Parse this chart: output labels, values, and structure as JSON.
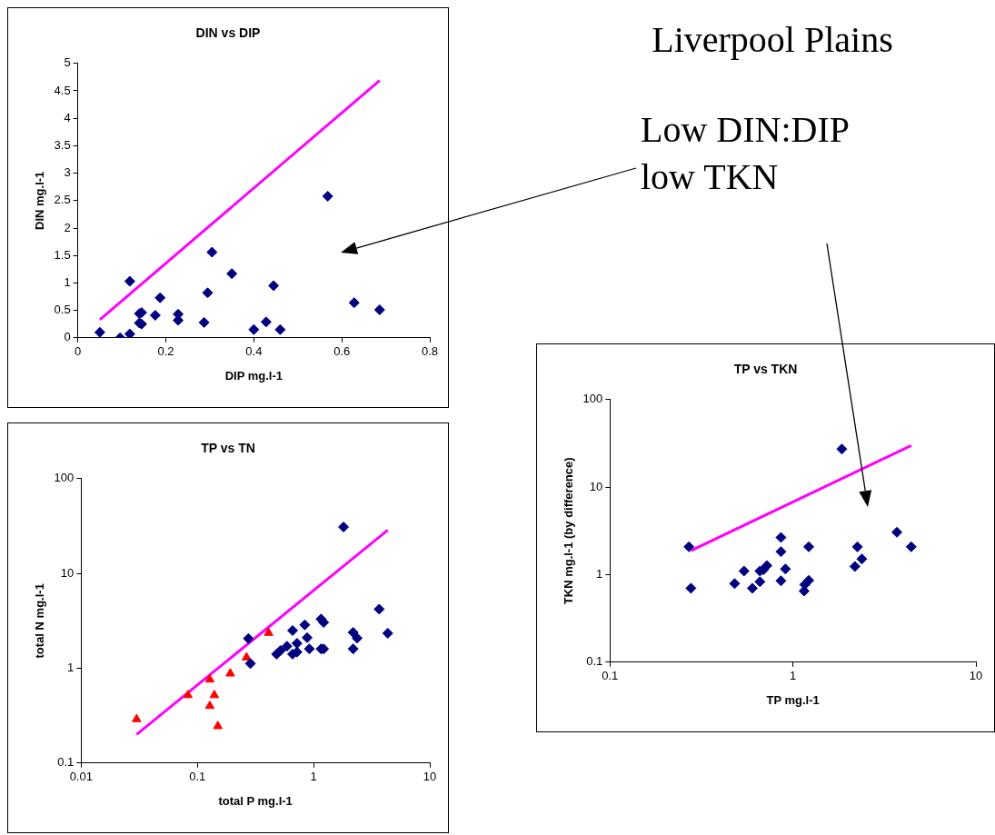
{
  "chart_data": [
    {
      "type": "scatter",
      "title": "DIN vs DIP",
      "xlabel": "DIP mg.l-1",
      "ylabel": "DIN mg.l-1",
      "xlim": [
        0,
        0.8
      ],
      "ylim": [
        0,
        5
      ],
      "xticks": [
        0,
        0.2,
        0.4,
        0.6,
        0.8
      ],
      "yticks": [
        0,
        0.5,
        1,
        1.5,
        2,
        2.5,
        3,
        3.5,
        4,
        4.5,
        5
      ],
      "series": [
        {
          "type": "scatter",
          "color": "#000080",
          "marker": "diamond",
          "x": [
            0.05,
            0.096,
            0.118,
            0.118,
            0.14,
            0.145,
            0.14,
            0.145,
            0.176,
            0.187,
            0.228,
            0.228,
            0.287,
            0.295,
            0.305,
            0.35,
            0.4,
            0.428,
            0.445,
            0.46,
            0.568,
            0.628,
            0.686
          ],
          "values": [
            0.1,
            0,
            0.07,
            1.03,
            0.44,
            0.46,
            0.27,
            0.25,
            0.41,
            0.73,
            0.43,
            0.32,
            0.28,
            0.82,
            1.56,
            1.17,
            0.15,
            0.29,
            0.95,
            0.15,
            2.58,
            0.64,
            0.51
          ]
        },
        {
          "type": "line",
          "color": "#ff00ff",
          "x": [
            0.05,
            0.686
          ],
          "values": [
            0.33,
            4.69
          ]
        }
      ]
    },
    {
      "type": "scatter",
      "title": "TP vs TN",
      "xlabel": "total P mg.l-1",
      "ylabel": "total N mg.l-1",
      "log": "xy",
      "xlim": [
        0.01,
        10
      ],
      "ylim": [
        0.1,
        100
      ],
      "xticks": [
        0.01,
        0.1,
        1,
        10
      ],
      "yticks": [
        0.1,
        1,
        10,
        100
      ],
      "series": [
        {
          "type": "scatter",
          "color": "#000080",
          "marker": "diamond",
          "x": [
            0.275,
            0.286,
            0.48,
            0.52,
            0.59,
            0.66,
            0.66,
            0.72,
            0.72,
            0.84,
            0.88,
            0.92,
            1.16,
            1.22,
            1.16,
            1.22,
            1.81,
            2.19,
            2.37,
            2.19,
            3.67,
            4.35
          ],
          "values": [
            2.06,
            1.12,
            1.41,
            1.54,
            1.71,
            2.5,
            1.41,
            1.83,
            1.48,
            2.87,
            2.1,
            1.6,
            3.3,
            3.04,
            1.6,
            1.6,
            30.9,
            2.39,
            2.08,
            1.6,
            4.2,
            2.34
          ]
        },
        {
          "type": "scatter",
          "color": "#ff0000",
          "marker": "triangle",
          "x": [
            0.03,
            0.083,
            0.128,
            0.14,
            0.128,
            0.15,
            0.192,
            0.265,
            0.41
          ],
          "values": [
            0.29,
            0.52,
            0.76,
            0.52,
            0.4,
            0.245,
            0.88,
            1.3,
            2.36
          ]
        },
        {
          "type": "line",
          "color": "#ff00ff",
          "x": [
            0.03,
            4.35
          ],
          "values": [
            0.2,
            28.7
          ]
        }
      ]
    },
    {
      "type": "scatter",
      "title": "TP vs TKN",
      "xlabel": "TP mg.l-1",
      "ylabel": "TKN mg.l-1 (by difference)",
      "log": "xy",
      "xlim": [
        0.1,
        10
      ],
      "ylim": [
        0.1,
        100
      ],
      "xticks": [
        0.1,
        1,
        10
      ],
      "yticks": [
        0.1,
        1,
        10,
        100
      ],
      "series": [
        {
          "type": "scatter",
          "color": "#000080",
          "marker": "diamond",
          "x": [
            0.27,
            0.277,
            0.48,
            0.54,
            0.6,
            0.66,
            0.66,
            0.69,
            0.72,
            0.86,
            0.86,
            0.86,
            0.91,
            1.15,
            1.16,
            1.22,
            1.22,
            1.85,
            2.18,
            2.25,
            2.38,
            3.7,
            4.43
          ],
          "values": [
            2.08,
            0.7,
            0.79,
            1.1,
            0.7,
            0.83,
            1.1,
            1.14,
            1.27,
            2.66,
            1.83,
            0.85,
            1.16,
            0.65,
            0.77,
            0.86,
            2.08,
            27.2,
            1.24,
            2.08,
            1.51,
            3.05,
            2.08
          ]
        },
        {
          "type": "line",
          "color": "#ff00ff",
          "x": [
            0.277,
            4.43
          ],
          "values": [
            1.88,
            29.9
          ]
        }
      ]
    },
    {
      "type": "other",
      "title": "Liverpool Plains",
      "annotations": [
        "Low DIN:DIP low TKN"
      ]
    }
  ]
}
